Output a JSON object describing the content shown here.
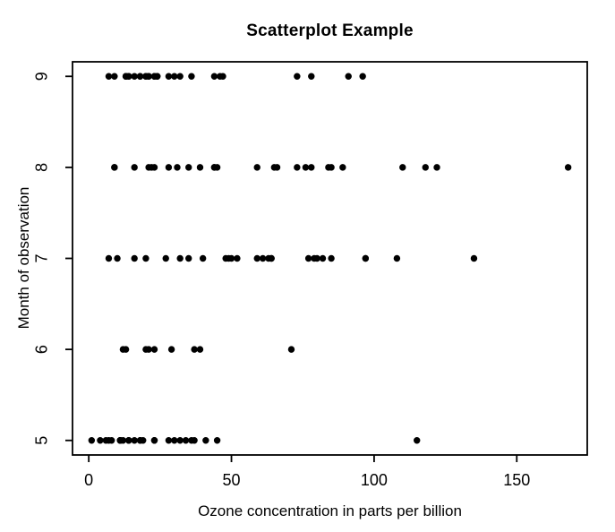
{
  "figure": {
    "background": "#ffffff",
    "axis_color": "#000000",
    "text_color": "#000000"
  },
  "chart_data": {
    "type": "scatter",
    "title": "Scatterplot Example",
    "xlabel": "Ozone concentration in parts per billion",
    "ylabel": "Month of observation",
    "xlim": [
      -5.7,
      174.7
    ],
    "ylim": [
      4.84,
      9.16
    ],
    "x_ticks": [
      0,
      50,
      100,
      150
    ],
    "y_ticks": [
      5,
      6,
      7,
      8,
      9
    ],
    "grid": false,
    "legend": "none",
    "marker": "filled-circle",
    "point_color": "#000000",
    "point_radius_px": 3.7,
    "series": [
      {
        "name": "month-5",
        "month": 5,
        "ozone": [
          41,
          36,
          12,
          18,
          28,
          23,
          19,
          8,
          7,
          16,
          11,
          14,
          18,
          14,
          34,
          6,
          30,
          11,
          1,
          11,
          4,
          32,
          23,
          45,
          115,
          37
        ]
      },
      {
        "name": "month-6",
        "month": 6,
        "ozone": [
          29,
          71,
          39,
          23,
          21,
          37,
          20,
          12,
          13
        ]
      },
      {
        "name": "month-7",
        "month": 7,
        "ozone": [
          135,
          49,
          32,
          64,
          40,
          77,
          97,
          97,
          85,
          10,
          27,
          7,
          48,
          35,
          61,
          79,
          63,
          16,
          80,
          108,
          20,
          52,
          82,
          50,
          64,
          59
        ]
      },
      {
        "name": "month-8",
        "month": 8,
        "ozone": [
          39,
          9,
          16,
          78,
          35,
          66,
          122,
          89,
          110,
          44,
          28,
          65,
          22,
          59,
          23,
          31,
          44,
          21,
          9,
          45,
          168,
          73,
          76,
          118,
          84,
          85
        ]
      },
      {
        "name": "month-9",
        "month": 9,
        "ozone": [
          96,
          78,
          73,
          91,
          47,
          32,
          20,
          23,
          21,
          24,
          44,
          21,
          28,
          9,
          13,
          46,
          18,
          13,
          24,
          16,
          13,
          23,
          36,
          7,
          14,
          30,
          14,
          18,
          20
        ]
      }
    ]
  }
}
